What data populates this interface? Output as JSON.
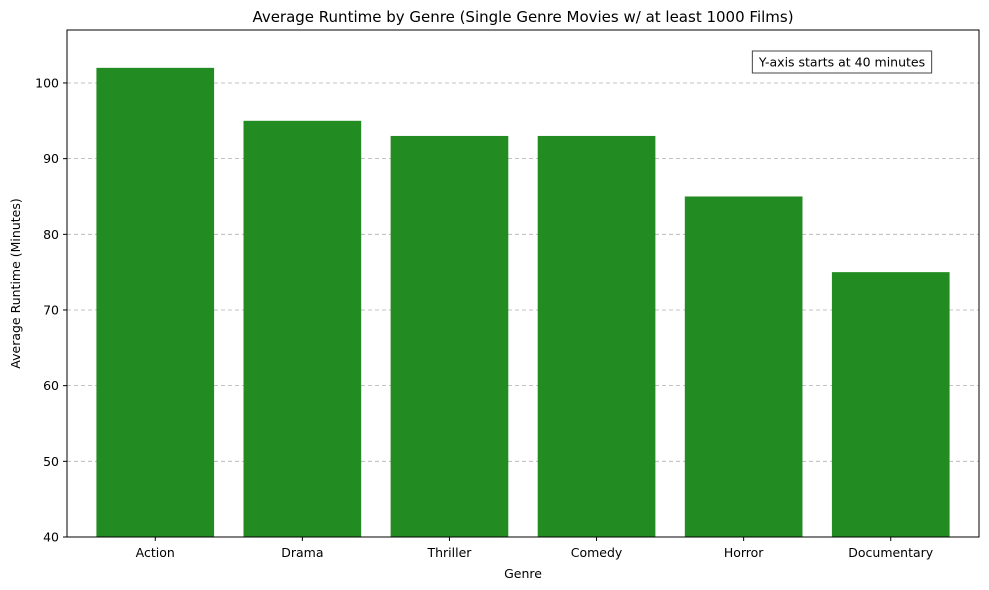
{
  "chart_data": {
    "type": "bar",
    "title": "Average Runtime by Genre (Single Genre Movies w/ at least 1000 Films)",
    "xlabel": "Genre",
    "ylabel": "Average Runtime (Minutes)",
    "categories": [
      "Action",
      "Drama",
      "Thriller",
      "Comedy",
      "Horror",
      "Documentary"
    ],
    "values": [
      102,
      95,
      93,
      93,
      85,
      75
    ],
    "ylim": [
      40,
      107
    ],
    "yticks": [
      40,
      50,
      60,
      70,
      80,
      90,
      100
    ],
    "grid": "y-dashed",
    "bar_color": "#228b22",
    "annotation": {
      "text": "Y-axis starts at 40 minutes",
      "placement": "top-right"
    }
  }
}
